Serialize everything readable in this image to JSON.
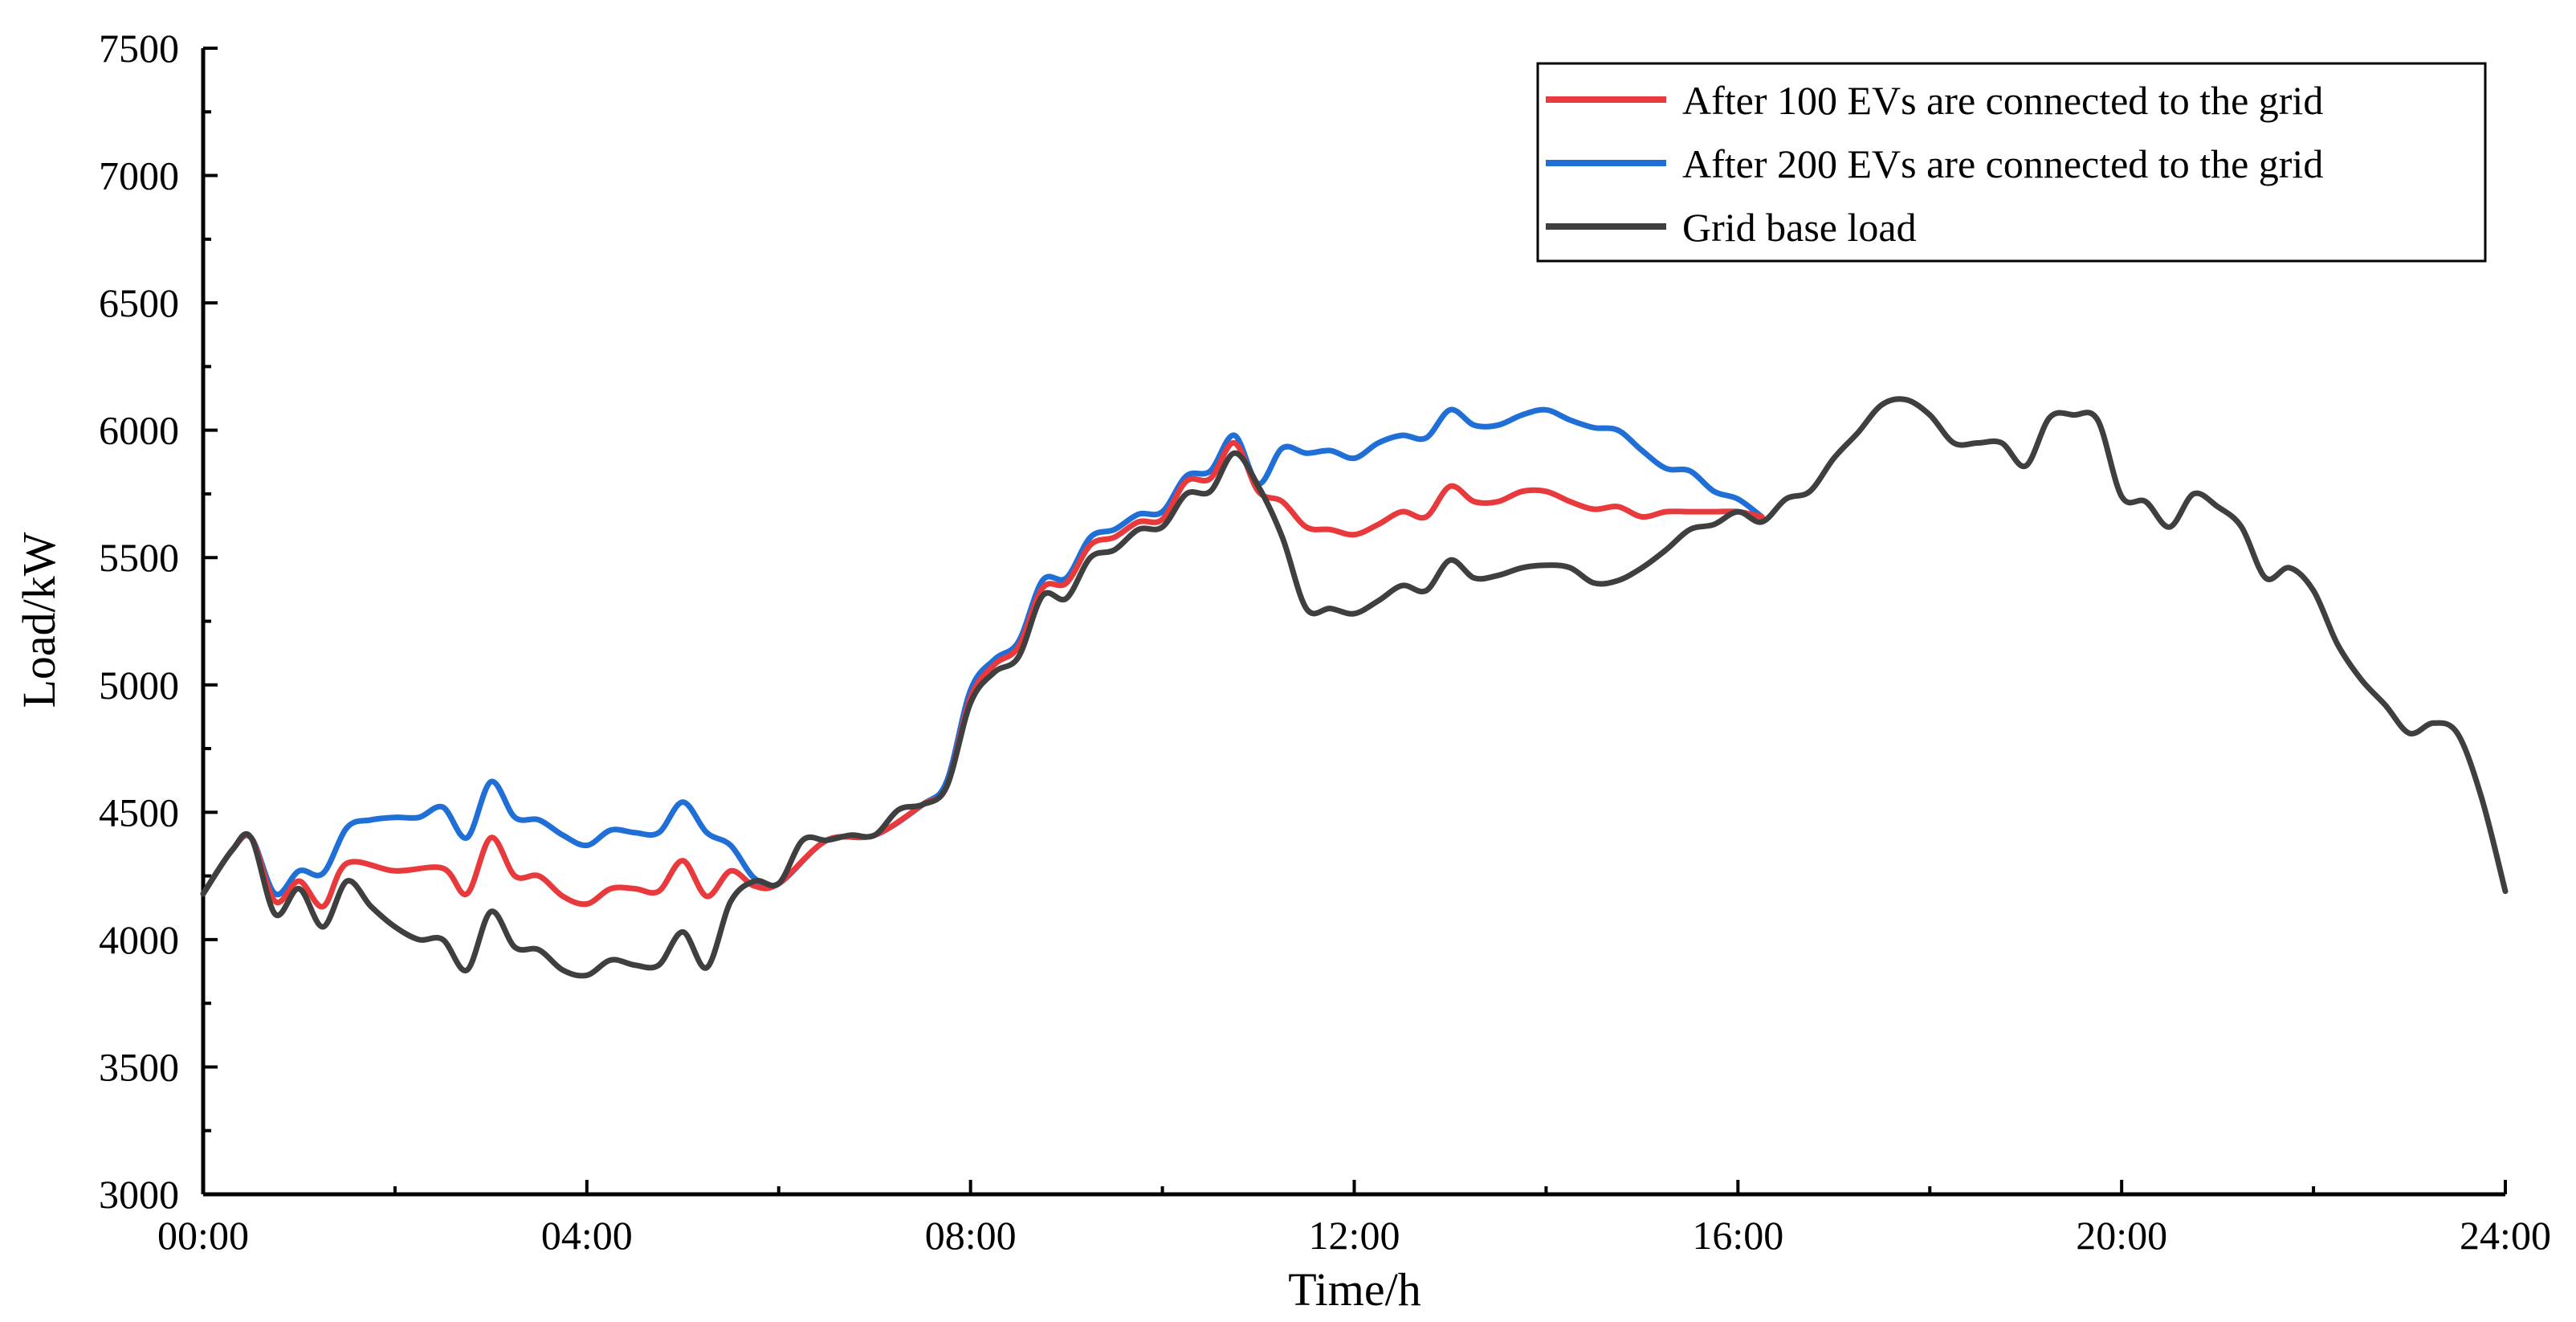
{
  "chart_data": {
    "type": "line",
    "xlabel": "Time/h",
    "ylabel": "Load/kW",
    "xlim": [
      0,
      24
    ],
    "ylim": [
      3000,
      7500
    ],
    "xticks": [
      {
        "value": 0,
        "label": "00:00"
      },
      {
        "value": 4,
        "label": "04:00"
      },
      {
        "value": 8,
        "label": "08:00"
      },
      {
        "value": 12,
        "label": "12:00"
      },
      {
        "value": 16,
        "label": "16:00"
      },
      {
        "value": 20,
        "label": "20:00"
      },
      {
        "value": 24,
        "label": "24:00"
      }
    ],
    "yticks": [
      {
        "value": 3000,
        "label": "3000"
      },
      {
        "value": 3500,
        "label": "3500"
      },
      {
        "value": 4000,
        "label": "4000"
      },
      {
        "value": 4500,
        "label": "4500"
      },
      {
        "value": 5000,
        "label": "5000"
      },
      {
        "value": 5500,
        "label": "5500"
      },
      {
        "value": 6000,
        "label": "6000"
      },
      {
        "value": 6500,
        "label": "6500"
      },
      {
        "value": 7000,
        "label": "7000"
      },
      {
        "value": 7500,
        "label": "7500"
      }
    ],
    "legend_position": "top-right",
    "series": [
      {
        "name": "After 100 EVs are connected to the grid",
        "color": "#e8393c",
        "x": [
          0,
          0.3,
          0.5,
          0.75,
          1.0,
          1.25,
          1.5,
          2.0,
          2.5,
          2.75,
          3.0,
          3.25,
          3.5,
          3.75,
          4.0,
          4.25,
          4.5,
          4.75,
          5.0,
          5.25,
          5.5,
          5.75,
          6.0,
          6.5,
          7.0,
          7.5,
          7.75,
          8.0,
          8.25,
          8.5,
          8.75,
          9.0,
          9.25,
          9.5,
          9.75,
          10.0,
          10.25,
          10.5,
          10.75,
          11.0,
          11.25,
          11.5,
          11.75,
          12.0,
          12.25,
          12.5,
          12.75,
          13.0,
          13.25,
          13.5,
          13.75,
          14.0,
          14.25,
          14.5,
          14.75,
          15.0,
          15.25,
          15.5,
          15.75,
          16.0,
          16.25
        ],
        "y": [
          4180,
          4350,
          4400,
          4150,
          4230,
          4130,
          4300,
          4270,
          4280,
          4180,
          4400,
          4250,
          4250,
          4170,
          4140,
          4200,
          4200,
          4190,
          4310,
          4170,
          4270,
          4210,
          4220,
          4390,
          4410,
          4530,
          4600,
          4950,
          5080,
          5150,
          5380,
          5400,
          5550,
          5580,
          5640,
          5650,
          5800,
          5810,
          5950,
          5760,
          5720,
          5620,
          5610,
          5590,
          5630,
          5680,
          5660,
          5780,
          5720,
          5720,
          5760,
          5760,
          5720,
          5690,
          5700,
          5660,
          5680,
          5680,
          5680,
          5680,
          5660
        ]
      },
      {
        "name": "After 200 EVs are connected to the grid",
        "color": "#1f6fd6",
        "x": [
          0,
          0.3,
          0.5,
          0.75,
          1.0,
          1.25,
          1.5,
          1.75,
          2.0,
          2.25,
          2.5,
          2.75,
          3.0,
          3.25,
          3.5,
          3.75,
          4.0,
          4.25,
          4.5,
          4.75,
          5.0,
          5.25,
          5.5,
          5.75,
          6.0,
          6.5,
          7.0,
          7.5,
          7.75,
          8.0,
          8.25,
          8.5,
          8.75,
          9.0,
          9.25,
          9.5,
          9.75,
          10.0,
          10.25,
          10.5,
          10.75,
          11.0,
          11.25,
          11.5,
          11.75,
          12.0,
          12.25,
          12.5,
          12.75,
          13.0,
          13.25,
          13.5,
          13.75,
          14.0,
          14.25,
          14.5,
          14.75,
          15.0,
          15.25,
          15.5,
          15.75,
          16.0,
          16.25
        ],
        "y": [
          4180,
          4350,
          4400,
          4180,
          4270,
          4260,
          4440,
          4470,
          4480,
          4480,
          4520,
          4400,
          4620,
          4480,
          4470,
          4410,
          4370,
          4430,
          4420,
          4420,
          4540,
          4420,
          4370,
          4240,
          4220,
          4390,
          4410,
          4530,
          4620,
          4980,
          5100,
          5170,
          5410,
          5420,
          5580,
          5610,
          5670,
          5680,
          5820,
          5840,
          5980,
          5790,
          5930,
          5910,
          5920,
          5890,
          5950,
          5980,
          5970,
          6080,
          6020,
          6020,
          6060,
          6080,
          6040,
          6010,
          6000,
          5920,
          5850,
          5840,
          5760,
          5730,
          5660
        ]
      },
      {
        "name": "Grid base load",
        "color": "#3f3f3f",
        "x": [
          0,
          0.3,
          0.5,
          0.75,
          1.0,
          1.25,
          1.5,
          1.75,
          2.0,
          2.25,
          2.5,
          2.75,
          3.0,
          3.25,
          3.5,
          3.75,
          4.0,
          4.25,
          4.5,
          4.75,
          5.0,
          5.25,
          5.5,
          5.75,
          6.0,
          6.25,
          6.5,
          6.75,
          7.0,
          7.25,
          7.5,
          7.75,
          8.0,
          8.25,
          8.5,
          8.75,
          9.0,
          9.25,
          9.5,
          9.75,
          10.0,
          10.25,
          10.5,
          10.75,
          11.0,
          11.25,
          11.5,
          11.75,
          12.0,
          12.25,
          12.5,
          12.75,
          13.0,
          13.25,
          13.5,
          13.75,
          14.0,
          14.25,
          14.5,
          14.75,
          15.0,
          15.25,
          15.5,
          15.75,
          16.0,
          16.25,
          16.5,
          16.75,
          17.0,
          17.25,
          17.5,
          17.75,
          18.0,
          18.25,
          18.5,
          18.75,
          19.0,
          19.25,
          19.5,
          19.75,
          20.0,
          20.25,
          20.5,
          20.75,
          21.0,
          21.25,
          21.5,
          21.75,
          22.0,
          22.25,
          22.5,
          22.75,
          23.0,
          23.25,
          23.5,
          23.75,
          24.0
        ],
        "y": [
          4180,
          4350,
          4400,
          4100,
          4200,
          4050,
          4230,
          4130,
          4050,
          4000,
          4000,
          3880,
          4110,
          3970,
          3960,
          3880,
          3860,
          3920,
          3900,
          3900,
          4030,
          3890,
          4150,
          4230,
          4220,
          4390,
          4390,
          4410,
          4410,
          4510,
          4530,
          4600,
          4930,
          5050,
          5110,
          5350,
          5340,
          5500,
          5530,
          5610,
          5620,
          5750,
          5760,
          5910,
          5780,
          5580,
          5300,
          5300,
          5280,
          5330,
          5390,
          5370,
          5490,
          5420,
          5430,
          5460,
          5470,
          5460,
          5400,
          5410,
          5460,
          5530,
          5610,
          5630,
          5680,
          5640,
          5730,
          5760,
          5890,
          5990,
          6100,
          6120,
          6060,
          5950,
          5950,
          5950,
          5860,
          6050,
          6060,
          6040,
          5740,
          5720,
          5620,
          5750,
          5700,
          5620,
          5420,
          5460,
          5370,
          5160,
          5020,
          4920,
          4810,
          4850,
          4810,
          4560,
          4190
        ]
      }
    ]
  }
}
